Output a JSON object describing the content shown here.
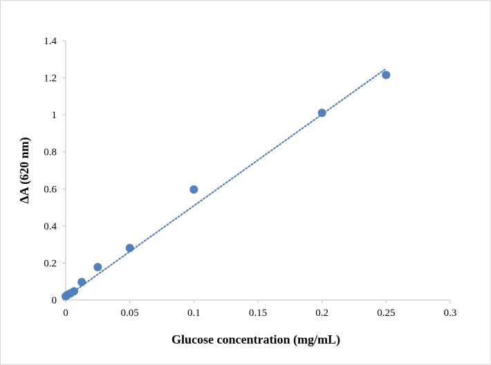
{
  "chart_data": {
    "type": "scatter",
    "title": "",
    "xlabel": "Glucose concentration (mg/mL)",
    "ylabel": "ΔA (620 nm)",
    "xlim": [
      0,
      0.3
    ],
    "ylim": [
      0,
      1.4
    ],
    "x_ticks": [
      "0",
      "0.05",
      "0.1",
      "0.15",
      "0.2",
      "0.25",
      "0.3"
    ],
    "y_ticks": [
      "0",
      "0.2",
      "0.4",
      "0.6",
      "0.8",
      "1",
      "1.2",
      "1.4"
    ],
    "grid": false,
    "legend": "none",
    "series": [
      {
        "color": "#4f81bd",
        "marker": "circle",
        "points": [
          {
            "x": 0.0,
            "y": 0.02
          },
          {
            "x": 0.00098,
            "y": 0.025
          },
          {
            "x": 0.00195,
            "y": 0.03
          },
          {
            "x": 0.0039,
            "y": 0.037
          },
          {
            "x": 0.0065,
            "y": 0.047
          },
          {
            "x": 0.0125,
            "y": 0.097
          },
          {
            "x": 0.025,
            "y": 0.178
          },
          {
            "x": 0.05,
            "y": 0.281
          },
          {
            "x": 0.1,
            "y": 0.597
          },
          {
            "x": 0.2,
            "y": 1.011
          },
          {
            "x": 0.25,
            "y": 1.215
          }
        ]
      }
    ],
    "trendline": {
      "style": "dotted",
      "color": "#4f81bd",
      "x": [
        0.0,
        0.25
      ],
      "y": [
        0.015,
        1.25
      ]
    }
  }
}
